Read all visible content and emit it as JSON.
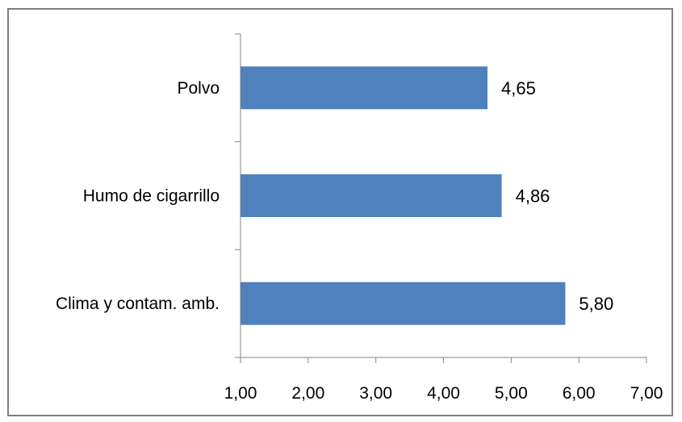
{
  "chart_data": {
    "type": "bar",
    "orientation": "horizontal",
    "categories": [
      "Polvo",
      "Humo de cigarrillo",
      "Clima y contam. amb."
    ],
    "values": [
      4.65,
      4.86,
      5.8
    ],
    "data_labels": [
      "4,65",
      "4,86",
      "5,80"
    ],
    "xlim": [
      1,
      7
    ],
    "x_ticks": [
      1,
      2,
      3,
      4,
      5,
      6,
      7
    ],
    "x_tick_labels": [
      "1,00",
      "2,00",
      "3,00",
      "4,00",
      "5,00",
      "6,00",
      "7,00"
    ],
    "bar_color": "#4f81bd",
    "grid": false,
    "legend": "none"
  }
}
